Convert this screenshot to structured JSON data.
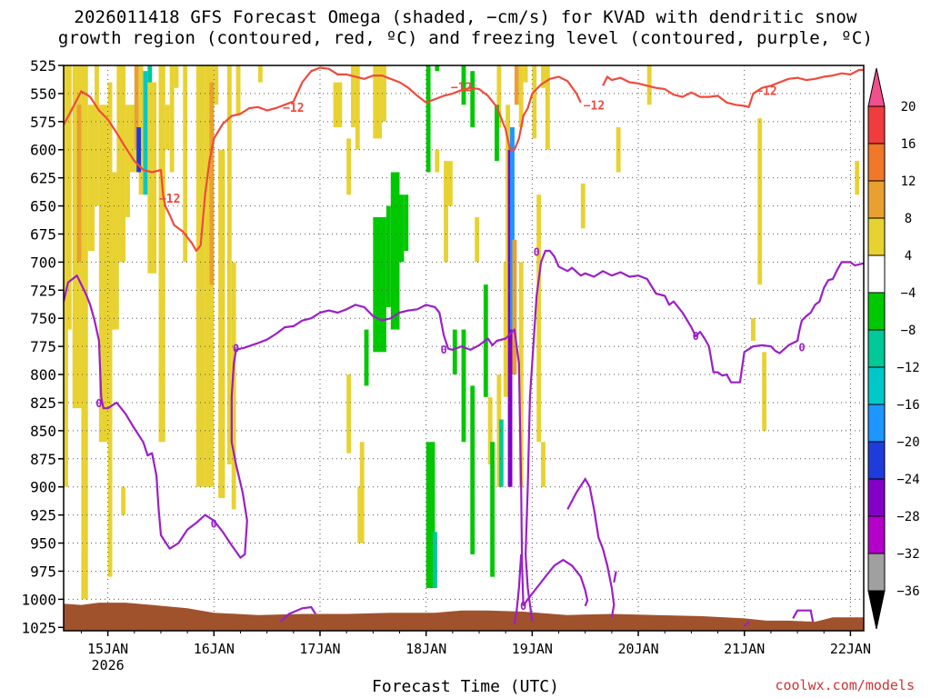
{
  "title_line1": "2026011418 GFS Forecast Omega (shaded, −cm/s) for KVAD with dendritic snow",
  "title_line2": "growth region (contoured, red, ºC) and freezing level (contoured, purple, ºC)",
  "credit": "coolwx.com/models",
  "chart_data": {
    "type": "time-height",
    "title": "2026011418 GFS Forecast Omega (shaded, −cm/s) for KVAD with dendritic snow growth region (contoured, red, ºC) and freezing level (contoured, purple, ºC)",
    "xlabel": "Forecast Time (UTC)",
    "ylabel": "Pressure (hPa)",
    "x_range_hours": [
      -4,
      177
    ],
    "ylim": [
      1025,
      525
    ],
    "y_ticks": [
      525,
      550,
      575,
      600,
      625,
      650,
      675,
      700,
      725,
      750,
      775,
      800,
      825,
      850,
      875,
      900,
      925,
      950,
      975,
      1000,
      1025
    ],
    "x_ticks": [
      {
        "hour": 6,
        "label": "15JAN",
        "sublabel": "2026"
      },
      {
        "hour": 30,
        "label": "16JAN"
      },
      {
        "hour": 54,
        "label": "17JAN"
      },
      {
        "hour": 78,
        "label": "18JAN"
      },
      {
        "hour": 102,
        "label": "19JAN"
      },
      {
        "hour": 126,
        "label": "20JAN"
      },
      {
        "hour": 150,
        "label": "21JAN"
      },
      {
        "hour": 174,
        "label": "22JAN"
      }
    ],
    "colorbar": {
      "labels": [
        "20",
        "16",
        "12",
        "8",
        "4",
        "−4",
        "−8",
        "−12",
        "−16",
        "−20",
        "−24",
        "−28",
        "−32",
        "−36"
      ],
      "colors": [
        "#f0508c",
        "#f03c3c",
        "#f07828",
        "#e8a030",
        "#e8d232",
        "#ffffff",
        "#00c800",
        "#00c896",
        "#00c8c8",
        "#1e96ff",
        "#1e3cdc",
        "#8200c8",
        "#b400c8",
        "#a0a0a0",
        "#000000"
      ]
    },
    "series": [
      {
        "name": "-12 ºC isotherm (DGZ top)",
        "color": "#f04a3c",
        "label": "−12",
        "points": [
          [
            -4,
            578
          ],
          [
            -2,
            563
          ],
          [
            0,
            548
          ],
          [
            2,
            553
          ],
          [
            4,
            565
          ],
          [
            6,
            573
          ],
          [
            8,
            585
          ],
          [
            10,
            598
          ],
          [
            12,
            610
          ],
          [
            14,
            618
          ],
          [
            16,
            620
          ],
          [
            18,
            618
          ],
          [
            18.5,
            640
          ],
          [
            19,
            650
          ],
          [
            20,
            658
          ],
          [
            21,
            667
          ],
          [
            23,
            673
          ],
          [
            25,
            683
          ],
          [
            26,
            690
          ],
          [
            27,
            685
          ],
          [
            28,
            640
          ],
          [
            29,
            610
          ],
          [
            30,
            590
          ],
          [
            32,
            577
          ],
          [
            34,
            570
          ],
          [
            36,
            568
          ],
          [
            38,
            563
          ],
          [
            40,
            562
          ],
          [
            42,
            565
          ],
          [
            44,
            563
          ],
          [
            46,
            560
          ],
          [
            48,
            557
          ],
          [
            50,
            540
          ],
          [
            52,
            530
          ],
          [
            54,
            527
          ],
          [
            56,
            528
          ],
          [
            58,
            533
          ],
          [
            60,
            533
          ],
          [
            62,
            535
          ],
          [
            64,
            537
          ],
          [
            66,
            534
          ],
          [
            68,
            534
          ],
          [
            70,
            537
          ],
          [
            72,
            540
          ],
          [
            74,
            545
          ],
          [
            76,
            552
          ],
          [
            78,
            558
          ],
          [
            80,
            555
          ],
          [
            82,
            552
          ],
          [
            84,
            550
          ],
          [
            86,
            547
          ],
          [
            88,
            545
          ],
          [
            90,
            546
          ],
          [
            92,
            552
          ],
          [
            94,
            562
          ],
          [
            96,
            582
          ],
          [
            97,
            600
          ],
          [
            98,
            600
          ],
          [
            99,
            590
          ],
          [
            100,
            570
          ],
          [
            101,
            563
          ],
          [
            102,
            550
          ],
          [
            104,
            542
          ],
          [
            106,
            537
          ],
          [
            108,
            535
          ],
          [
            110,
            539
          ],
          [
            112,
            550
          ],
          [
            113,
            558
          ]
        ],
        "points2": [
          [
            118,
            543
          ],
          [
            119,
            535
          ],
          [
            120,
            538
          ],
          [
            122,
            536
          ],
          [
            124,
            540
          ],
          [
            126,
            541
          ],
          [
            128,
            543
          ],
          [
            130,
            545
          ],
          [
            132,
            546
          ],
          [
            134,
            551
          ],
          [
            136,
            553
          ],
          [
            138,
            549
          ],
          [
            140,
            553
          ],
          [
            142,
            553
          ],
          [
            144,
            552
          ],
          [
            146,
            558
          ],
          [
            148,
            560
          ],
          [
            150,
            561
          ],
          [
            151,
            562
          ],
          [
            152,
            550
          ],
          [
            154,
            545
          ],
          [
            156,
            543
          ],
          [
            158,
            540
          ],
          [
            160,
            537
          ],
          [
            162,
            536
          ],
          [
            164,
            538
          ],
          [
            166,
            537
          ],
          [
            168,
            535
          ],
          [
            170,
            534
          ],
          [
            172,
            532
          ],
          [
            174,
            533
          ],
          [
            176,
            529
          ],
          [
            177,
            529
          ]
        ]
      },
      {
        "name": "0 ºC freezing level",
        "color": "#9b1fc8",
        "label": "0",
        "points": [
          [
            -4,
            735
          ],
          [
            -3,
            718
          ],
          [
            -1,
            712
          ],
          [
            1,
            728
          ],
          [
            2,
            738
          ],
          [
            3,
            752
          ],
          [
            4,
            770
          ],
          [
            4.5,
            820
          ],
          [
            5,
            830
          ],
          [
            6,
            830
          ],
          [
            8,
            825
          ],
          [
            10,
            835
          ],
          [
            12,
            848
          ],
          [
            14,
            860
          ],
          [
            15,
            872
          ],
          [
            16,
            870
          ],
          [
            17,
            890
          ],
          [
            17.5,
            920
          ],
          [
            18,
            943
          ],
          [
            20,
            955
          ],
          [
            22,
            950
          ],
          [
            24,
            938
          ],
          [
            26,
            932
          ],
          [
            28,
            925
          ],
          [
            30,
            930
          ],
          [
            32,
            940
          ],
          [
            34,
            952
          ],
          [
            36,
            963
          ],
          [
            37,
            960
          ],
          [
            37.5,
            930
          ],
          [
            36.5,
            905
          ],
          [
            35,
            880
          ],
          [
            34,
            860
          ],
          [
            34,
            820
          ],
          [
            34.5,
            790
          ],
          [
            35,
            778
          ],
          [
            37,
            776
          ],
          [
            40,
            772
          ],
          [
            42,
            769
          ],
          [
            44,
            764
          ],
          [
            46,
            758
          ],
          [
            48,
            757
          ],
          [
            50,
            752
          ],
          [
            52,
            750
          ],
          [
            54,
            745
          ],
          [
            56,
            743
          ],
          [
            58,
            745
          ],
          [
            60,
            742
          ],
          [
            62,
            738
          ],
          [
            64,
            740
          ],
          [
            66,
            748
          ],
          [
            68,
            752
          ],
          [
            70,
            750
          ],
          [
            72,
            745
          ],
          [
            74,
            743
          ],
          [
            76,
            742
          ],
          [
            78,
            738
          ],
          [
            80,
            740
          ],
          [
            81,
            745
          ],
          [
            82,
            765
          ],
          [
            83,
            777
          ],
          [
            84,
            778
          ],
          [
            86,
            775
          ],
          [
            88,
            778
          ],
          [
            90,
            774
          ],
          [
            92,
            768
          ],
          [
            93,
            774
          ],
          [
            94,
            770
          ],
          [
            96,
            768
          ],
          [
            98,
            760
          ],
          [
            99,
            790
          ],
          [
            99.5,
            900
          ],
          [
            99.7,
            970
          ],
          [
            100,
            1005
          ]
        ],
        "points2": [
          [
            100,
            1006
          ],
          [
            101,
            1000
          ],
          [
            103,
            990
          ],
          [
            105,
            980
          ],
          [
            107,
            970
          ],
          [
            109,
            965
          ],
          [
            111,
            970
          ],
          [
            113,
            980
          ],
          [
            114,
            992
          ],
          [
            114.5,
            1001
          ],
          [
            114,
            1006
          ]
        ],
        "points3": [
          [
            102,
            1020
          ],
          [
            101,
            990
          ],
          [
            100.5,
            960
          ],
          [
            101,
            900
          ],
          [
            101.5,
            820
          ],
          [
            102.5,
            760
          ],
          [
            103,
            730
          ],
          [
            104,
            700
          ],
          [
            105,
            690
          ],
          [
            106,
            690
          ],
          [
            107,
            695
          ],
          [
            108,
            704
          ],
          [
            110,
            708
          ],
          [
            111,
            705
          ],
          [
            113,
            712
          ],
          [
            114,
            710
          ],
          [
            116,
            713
          ],
          [
            118,
            708
          ],
          [
            120,
            712
          ],
          [
            122,
            709
          ],
          [
            124,
            713
          ],
          [
            126,
            712
          ],
          [
            128,
            715
          ],
          [
            130,
            728
          ],
          [
            132,
            730
          ],
          [
            133,
            738
          ],
          [
            134,
            735
          ],
          [
            136,
            745
          ],
          [
            138,
            758
          ],
          [
            139,
            766
          ],
          [
            140,
            762
          ],
          [
            141,
            768
          ],
          [
            142,
            775
          ],
          [
            143,
            798
          ],
          [
            144,
            798
          ],
          [
            145,
            801
          ],
          [
            146,
            800
          ],
          [
            147,
            807
          ],
          [
            148,
            807
          ],
          [
            149,
            807
          ],
          [
            150,
            780
          ],
          [
            152,
            775
          ],
          [
            154,
            774
          ],
          [
            156,
            775
          ],
          [
            157,
            779
          ],
          [
            158,
            781
          ],
          [
            160,
            774
          ],
          [
            161,
            772
          ],
          [
            162,
            770
          ],
          [
            162.5,
            760
          ],
          [
            163,
            752
          ],
          [
            164,
            748
          ],
          [
            165,
            745
          ],
          [
            166,
            738
          ],
          [
            167,
            735
          ],
          [
            168,
            723
          ],
          [
            169,
            716
          ],
          [
            170,
            715
          ],
          [
            171,
            707
          ],
          [
            172,
            700
          ],
          [
            174,
            700
          ],
          [
            175,
            703
          ],
          [
            176,
            702
          ],
          [
            177,
            701
          ]
        ]
      }
    ],
    "isolines_right_lower": {
      "name": "0 ºC lower branches"
    },
    "omega_regions": [
      {
        "label": "upward motion (4-8 cm/s)",
        "value": 6
      },
      {
        "label": "downward motion (-4 to -8 cm/s)",
        "value": -6
      },
      {
        "label": "strong downward motion (-16 to -32 cm/s)",
        "value": -24
      }
    ],
    "contour_labels": [
      {
        "text": "−12",
        "hour": 48,
        "p": 563
      },
      {
        "text": "−12",
        "hour": 20,
        "p": 644
      },
      {
        "text": "−12",
        "hour": 86,
        "p": 545
      },
      {
        "text": "−12",
        "hour": 116,
        "p": 561
      },
      {
        "text": "−12",
        "hour": 155,
        "p": 548
      },
      {
        "text": "0",
        "hour": 4,
        "p": 826
      },
      {
        "text": "0",
        "hour": 30,
        "p": 933
      },
      {
        "text": "0",
        "hour": 35,
        "p": 777
      },
      {
        "text": "0",
        "hour": 82,
        "p": 778
      },
      {
        "text": "0",
        "hour": 103,
        "p": 691
      },
      {
        "text": "0",
        "hour": 139,
        "p": 766
      },
      {
        "text": "0",
        "hour": 163,
        "p": 776
      },
      {
        "text": "0",
        "hour": 100,
        "p": 1006
      }
    ]
  }
}
